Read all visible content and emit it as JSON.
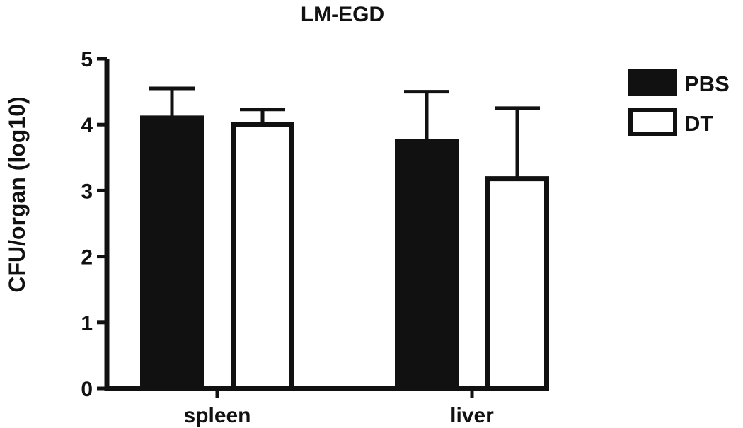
{
  "chart_data": {
    "type": "bar",
    "title": "LM-EGD",
    "xlabel": "",
    "ylabel": "CFU/organ (log10)",
    "categories": [
      "spleen",
      "liver"
    ],
    "ylim": [
      0,
      5
    ],
    "yticks": [
      0,
      1,
      2,
      3,
      4,
      5
    ],
    "grid": false,
    "legend_position": "top-right",
    "series": [
      {
        "name": "PBS",
        "values": [
          4.1,
          3.75
        ],
        "error": [
          0.45,
          0.75
        ],
        "fill": "#111111"
      },
      {
        "name": "DT",
        "values": [
          4.0,
          3.18
        ],
        "error": [
          0.23,
          1.07
        ],
        "fill": "#ffffff"
      }
    ]
  }
}
